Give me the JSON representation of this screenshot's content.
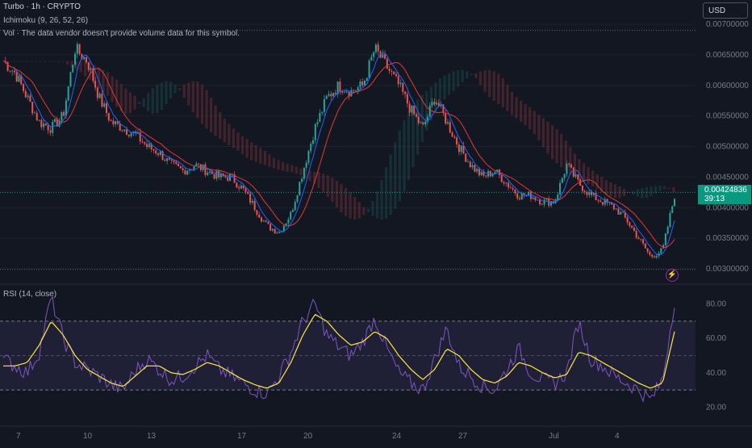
{
  "legend": {
    "title": "Turbo · 1h · CRYPTO",
    "ichimoku": "Ichimoku (9, 26, 52, 26)",
    "vol": "Vol · The data vendor doesn't provide volume data for this symbol."
  },
  "currency": "USD",
  "last_price": {
    "value": "0.00424836",
    "countdown": "39:13"
  },
  "rsi_label": "RSI (14, close)",
  "price_axis": [
    "0.00700000",
    "0.00650000",
    "0.00600000",
    "0.00550000",
    "0.00500000",
    "0.00450000",
    "0.00400000",
    "0.00350000",
    "0.00300000"
  ],
  "rsi_axis": [
    "80.00",
    "60.00",
    "40.00",
    "20.00"
  ],
  "time_axis": [
    "7",
    "10",
    "13",
    "17",
    "20",
    "24",
    "27",
    "Jul",
    "4"
  ],
  "colors": {
    "background": "#131722",
    "up": "#26a69a",
    "down": "#ef5350",
    "rsi": "#7e57c2",
    "rsi_ma": "#ffeb3b",
    "badge": "#089981"
  },
  "icons": {
    "alert": "lightning-bolt-icon"
  },
  "chart_data": {
    "type": "candlestick",
    "title": "Turbo · 1h · CRYPTO",
    "x": [
      "7",
      "10",
      "13",
      "17",
      "20",
      "24",
      "27",
      "Jul",
      "4"
    ],
    "price_close_series": [
      0.0064,
      0.0062,
      0.0058,
      0.0054,
      0.0053,
      0.0055,
      0.0066,
      0.0064,
      0.0058,
      0.0054,
      0.0053,
      0.0052,
      0.005,
      0.0049,
      0.0047,
      0.0046,
      0.0047,
      0.0046,
      0.0045,
      0.0045,
      0.0043,
      0.004,
      0.0037,
      0.0036,
      0.0039,
      0.0046,
      0.0053,
      0.0058,
      0.006,
      0.0059,
      0.006,
      0.0066,
      0.0063,
      0.006,
      0.0056,
      0.0053,
      0.0058,
      0.0054,
      0.005,
      0.0047,
      0.0045,
      0.0046,
      0.0044,
      0.0042,
      0.0042,
      0.0041,
      0.0041,
      0.0047,
      0.0044,
      0.0042,
      0.0041,
      0.004,
      0.0038,
      0.0035,
      0.0032,
      0.0033,
      0.0042
    ],
    "ylim": [
      0.003,
      0.007
    ],
    "last_price": 0.00424836,
    "rsi": {
      "name": "RSI (14, close)",
      "period": 14,
      "ylim": [
        15,
        85
      ],
      "upper_band": 70,
      "middle": 50,
      "lower_band": 30,
      "values": [
        48,
        44,
        40,
        52,
        84,
        60,
        46,
        42,
        38,
        33,
        30,
        41,
        48,
        42,
        36,
        38,
        44,
        50,
        42,
        38,
        34,
        30,
        28,
        38,
        52,
        70,
        80,
        62,
        55,
        50,
        58,
        72,
        54,
        40,
        34,
        30,
        48,
        66,
        44,
        38,
        32,
        30,
        42,
        54,
        40,
        36,
        34,
        40,
        70,
        48,
        44,
        38,
        34,
        30,
        24,
        36,
        82
      ],
      "ma": [
        44,
        44,
        46,
        56,
        70,
        62,
        50,
        42,
        38,
        34,
        32,
        38,
        44,
        44,
        40,
        39,
        42,
        46,
        44,
        40,
        36,
        33,
        31,
        34,
        46,
        62,
        74,
        70,
        62,
        56,
        58,
        64,
        60,
        50,
        42,
        36,
        42,
        54,
        50,
        42,
        36,
        34,
        38,
        46,
        44,
        40,
        37,
        39,
        52,
        50,
        46,
        42,
        38,
        34,
        31,
        34,
        64
      ]
    }
  }
}
